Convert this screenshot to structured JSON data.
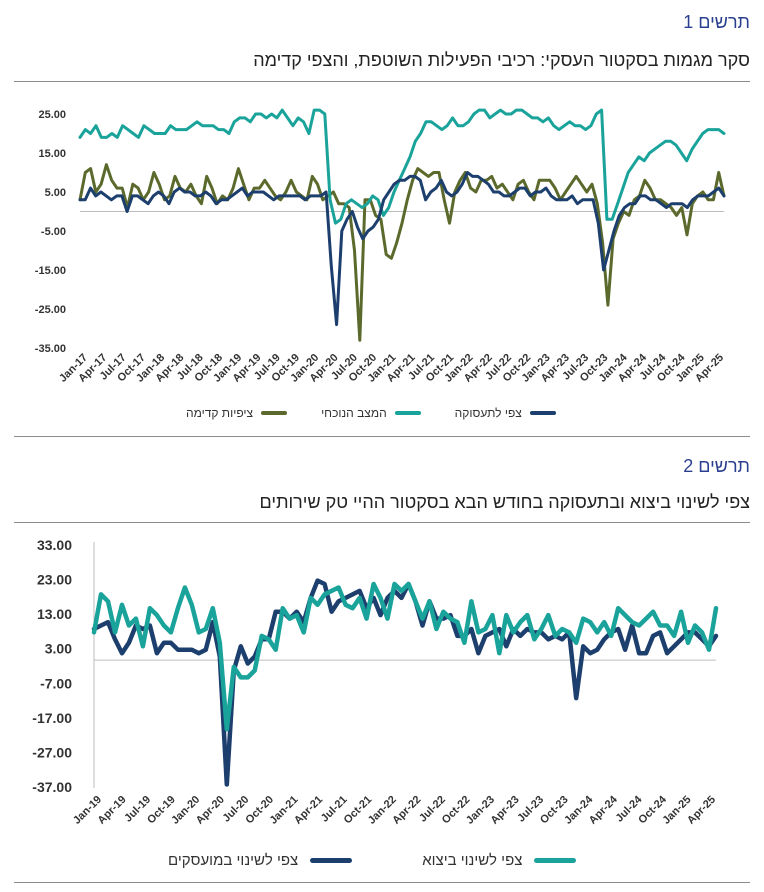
{
  "figures": [
    {
      "label": "תרשים 1",
      "title": "סקר מגמות בסקטור העסקי: רכיבי הפעילות השוטפת, והצפי קדימה"
    },
    {
      "label": "תרשים 2",
      "title": "צפי לשינוי ביצוא ובתעסוקה בחודש הבא בסקטור ההיי טק שירותים"
    }
  ],
  "chart_data": [
    {
      "type": "line",
      "title": "סקר מגמות בסקטור העסקי: רכיבי הפעילות השוטפת, והצפי קדימה",
      "x_labels": [
        "Jan-17",
        "Apr-17",
        "Jul-17",
        "Oct-17",
        "Jan-18",
        "Apr-18",
        "Jul-18",
        "Oct-18",
        "Jan-19",
        "Apr-19",
        "Jul-19",
        "Oct-19",
        "Jan-20",
        "Apr-20",
        "Jul-20",
        "Oct-20",
        "Jan-21",
        "Apr-21",
        "Jul-21",
        "Oct-21",
        "Jan-22",
        "Apr-22",
        "Jul-22",
        "Oct-22",
        "Jan-23",
        "Apr-23",
        "Jul-23",
        "Oct-23",
        "Jan-24",
        "Apr-24",
        "Jul-24",
        "Oct-24",
        "Jan-25",
        "Apr-25"
      ],
      "ylim": [
        -35,
        25
      ],
      "y_ticks": [
        "25.00",
        "15.00",
        "5.00",
        "-5.00",
        "-15.00",
        "-25.00",
        "-35.00"
      ],
      "grid": false,
      "legend_position": "bottom",
      "series": [
        {
          "name": "ציפיות קדימה",
          "color": "#5b6a2c",
          "values": [
            3,
            10,
            11,
            5,
            7,
            12,
            8,
            6,
            6,
            1,
            7,
            6,
            3,
            5,
            10,
            7,
            3,
            4,
            9,
            6,
            5,
            7,
            4,
            2,
            9,
            6,
            2,
            4,
            3,
            6,
            11,
            7,
            3,
            6,
            6,
            8,
            6,
            4,
            3,
            5,
            8,
            5,
            4,
            3,
            9,
            7,
            3,
            4,
            5,
            2,
            2,
            1,
            -10,
            -33,
            3,
            3,
            -1,
            -2,
            -11,
            -12,
            -8,
            -3,
            3,
            8,
            11,
            10,
            9,
            10,
            10,
            3,
            -3,
            5,
            8,
            10,
            6,
            5,
            8,
            8,
            9,
            6,
            7,
            5,
            3,
            7,
            8,
            5,
            3,
            8,
            8,
            8,
            6,
            3,
            5,
            7,
            9,
            7,
            5,
            7,
            2,
            -8,
            -24,
            -7,
            -3,
            0,
            -1,
            3,
            4,
            8,
            6,
            3,
            3,
            2,
            1,
            -1,
            1,
            -6,
            2,
            4,
            5,
            3,
            3,
            10,
            4
          ]
        },
        {
          "name": "המצב הנוכחי",
          "color": "#1aa39a",
          "values": [
            19,
            21,
            20,
            22,
            19,
            19,
            20,
            19,
            22,
            21,
            20,
            19,
            22,
            21,
            20,
            20,
            20,
            22,
            21,
            21,
            21,
            22,
            23,
            22,
            22,
            22,
            21,
            21,
            20,
            23,
            24,
            24,
            23,
            25,
            25,
            24,
            25,
            24,
            26,
            24,
            22,
            24,
            23,
            20,
            26,
            26,
            25,
            3,
            -3,
            -2,
            2,
            3,
            2,
            1,
            2,
            4,
            3,
            -1,
            1,
            5,
            8,
            11,
            14,
            18,
            20,
            23,
            23,
            22,
            21,
            22,
            24,
            22,
            22,
            23,
            25,
            26,
            26,
            24,
            25,
            26,
            25,
            25,
            26,
            26,
            25,
            24,
            24,
            23,
            24,
            22,
            21,
            22,
            23,
            22,
            22,
            21,
            22,
            25,
            26,
            -2,
            -2,
            2,
            6,
            10,
            12,
            14,
            13,
            15,
            16,
            17,
            18,
            18,
            17,
            15,
            13,
            16,
            18,
            20,
            21,
            21,
            21,
            20
          ]
        },
        {
          "name": "צפי לתעסוקה",
          "color": "#1c3f6e",
          "values": [
            3,
            3,
            6,
            4,
            5,
            4,
            3,
            4,
            4,
            0,
            4,
            4,
            3,
            2,
            4,
            5,
            4,
            2,
            5,
            6,
            5,
            5,
            4,
            4,
            5,
            4,
            2,
            3,
            3,
            4,
            5,
            6,
            4,
            5,
            5,
            5,
            4,
            3,
            4,
            4,
            4,
            4,
            4,
            3,
            4,
            4,
            4,
            5,
            -14,
            -29,
            -5,
            -2,
            0,
            -4,
            -7,
            -5,
            -4,
            -2,
            3,
            5,
            7,
            8,
            8,
            9,
            9,
            8,
            3,
            5,
            6,
            8,
            5,
            4,
            5,
            7,
            10,
            9,
            9,
            8,
            7,
            5,
            5,
            4,
            4,
            5,
            6,
            6,
            4,
            5,
            5,
            6,
            4,
            3,
            3,
            3,
            4,
            2,
            3,
            3,
            3,
            -3,
            -15,
            -10,
            -5,
            -1,
            1,
            2,
            2,
            4,
            4,
            3,
            3,
            2,
            1,
            2,
            2,
            2,
            1,
            3,
            4,
            4,
            4,
            5,
            6,
            4
          ]
        }
      ]
    },
    {
      "type": "line",
      "title": "צפי לשינוי ביצוא ובתעסוקה בחודש הבא בסקטור ההיי טק שירותים",
      "x_labels": [
        "Jan-19",
        "Apr-19",
        "Jul-19",
        "Oct-19",
        "Jan-20",
        "Apr-20",
        "Jul-20",
        "Oct-20",
        "Jan-21",
        "Apr-21",
        "Jul-21",
        "Oct-21",
        "Jan-22",
        "Apr-22",
        "Jul-22",
        "Oct-22",
        "Jan-23",
        "Apr-23",
        "Jul-23",
        "Oct-23",
        "Jan-24",
        "Apr-24",
        "Jul-24",
        "Oct-24",
        "Jan-25",
        "Apr-25"
      ],
      "ylim": [
        -37,
        33
      ],
      "y_ticks": [
        "33.00",
        "23.00",
        "13.00",
        "3.00",
        "-7.00",
        "-17.00",
        "-27.00",
        "-37.00"
      ],
      "grid": false,
      "legend_position": "bottom",
      "series": [
        {
          "name": "צפי לשינוי במועסקים",
          "color": "#1c3f6e",
          "values": [
            9,
            10,
            11,
            6,
            2,
            5,
            10,
            9,
            10,
            2,
            5,
            5,
            3,
            3,
            3,
            2,
            3,
            11,
            1,
            -36,
            -3,
            4,
            -1,
            1,
            6,
            6,
            14,
            14,
            12,
            14,
            11,
            18,
            23,
            22,
            14,
            17,
            18,
            19,
            20,
            15,
            18,
            13,
            18,
            20,
            18,
            22,
            17,
            10,
            17,
            12,
            12,
            13,
            7,
            7,
            9,
            2,
            7,
            8,
            9,
            4,
            9,
            7,
            9,
            8,
            8,
            6,
            7,
            6,
            8,
            -11,
            4,
            2,
            3,
            6,
            8,
            9,
            3,
            10,
            2,
            2,
            7,
            8,
            2,
            4,
            6,
            8,
            8,
            6,
            4,
            7
          ]
        },
        {
          "name": "צפי לשינוי ביצוא",
          "color": "#1aa39a",
          "values": [
            8,
            19,
            17,
            8,
            16,
            10,
            12,
            4,
            15,
            13,
            10,
            8,
            15,
            21,
            16,
            8,
            9,
            15,
            5,
            -20,
            -2,
            -5,
            -5,
            -3,
            7,
            6,
            3,
            15,
            12,
            13,
            8,
            18,
            16,
            19,
            20,
            21,
            16,
            15,
            18,
            12,
            22,
            18,
            12,
            22,
            20,
            22,
            17,
            12,
            17,
            9,
            14,
            12,
            11,
            5,
            17,
            8,
            9,
            13,
            2,
            13,
            8,
            11,
            13,
            6,
            9,
            13,
            7,
            9,
            8,
            5,
            12,
            11,
            8,
            11,
            7,
            15,
            13,
            11,
            10,
            12,
            14,
            10,
            10,
            7,
            14,
            5,
            10,
            8,
            3,
            15
          ]
        }
      ]
    }
  ]
}
